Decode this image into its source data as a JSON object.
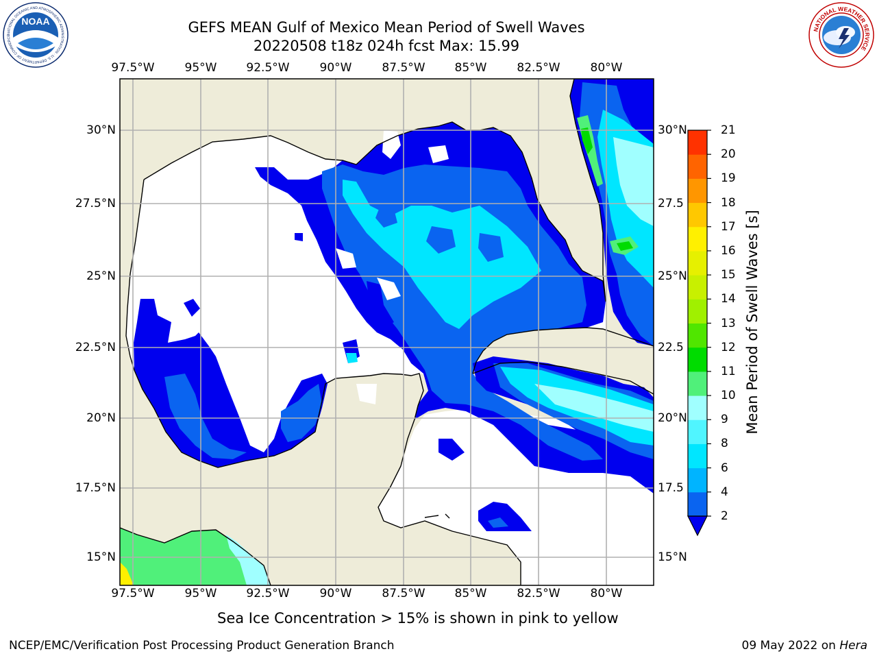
{
  "header": {
    "title_line1": "GEFS MEAN Gulf of Mexico Mean Period of Swell Waves",
    "title_line2": "20220508 t18z 024h fcst   Max: 15.99"
  },
  "logos": {
    "left": "NOAA",
    "left_ring": "NATIONAL OCEANIC AND ATMOSPHERIC ADMINISTRATION · U.S. DEPARTMENT OF COMMERCE",
    "right_ring": "NATIONAL WEATHER SERVICE"
  },
  "map": {
    "lon_labels": [
      "97.5°W",
      "95°W",
      "92.5°W",
      "90°W",
      "87.5°W",
      "85°W",
      "82.5°W",
      "80°W"
    ],
    "lat_labels_left": [
      "30°N",
      "27.5°N",
      "25°N",
      "22.5°N",
      "20°N",
      "17.5°N",
      "15°N"
    ],
    "lat_labels_right": [
      "30°N",
      "27.5",
      "25°N",
      "22.5",
      "20°N",
      "17.5",
      "15°N"
    ]
  },
  "colorbar": {
    "label": "Mean Period of Swell Waves [s]",
    "ticks": [
      "2",
      "4",
      "6",
      "8",
      "9",
      "10",
      "11",
      "12",
      "13",
      "14",
      "15",
      "16",
      "17",
      "18",
      "19",
      "20",
      "21"
    ],
    "colors": [
      "#0a64f0",
      "#00b4ff",
      "#00e6ff",
      "#50f5ff",
      "#a0ffff",
      "#50f07a",
      "#00dc00",
      "#50e600",
      "#a0f000",
      "#c8f000",
      "#e6f000",
      "#fff000",
      "#ffc800",
      "#ff9600",
      "#ff6400",
      "#ff3200"
    ],
    "extend_color": "#0000ee"
  },
  "colors": {
    "land": "#eeecd9",
    "water_dark_blue": "#0000ee",
    "water_blue": "#0a64f0",
    "water_cyan": "#00e6ff",
    "grid": "#b0b0b0"
  },
  "footer": {
    "sea_ice_note": "Sea Ice Concentration > 15% is shown in pink to yellow",
    "credit": "NCEP/EMC/Verification Post Processing Product Generation Branch",
    "date": "09 May 2022 on ",
    "host": "Hera"
  }
}
